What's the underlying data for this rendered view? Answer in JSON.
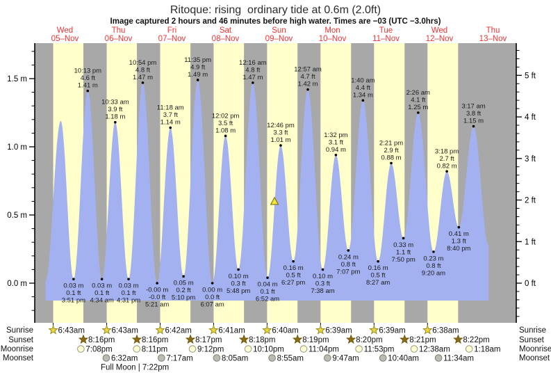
{
  "title": "Ritoque: rising  ordinary tide at 0.6m (2.0ft)",
  "subtitle": "Image captured 2 hours and 46 minutes before high water. Times are −03 (UTC −3.0hrs)",
  "labels": {
    "sunrise": "Sunrise",
    "sunset": "Sunset",
    "moonrise": "Moonrise",
    "moonset": "Moonset"
  },
  "chart_data": {
    "type": "area",
    "title": "Ritoque: rising  ordinary tide at 0.6m (2.0ft)",
    "y_axis_left": {
      "unit": "m",
      "major_ticks": [
        0.0,
        0.5,
        1.0,
        1.5
      ],
      "labels": [
        "0.0 m",
        "0.5 m",
        "1.0 m",
        "1.5 m"
      ],
      "minor_step": 0.1,
      "range": [
        -0.28,
        1.76
      ]
    },
    "y_axis_right": {
      "unit": "ft",
      "major_ticks": [
        0,
        1,
        2,
        3,
        4,
        5
      ],
      "labels": [
        "0 ft",
        "1 ft",
        "2 ft",
        "3 ft",
        "4 ft",
        "5 ft"
      ],
      "minor_step": 0.2
    },
    "days": [
      {
        "weekday": "Wed",
        "date": "05–Nov"
      },
      {
        "weekday": "Thu",
        "date": "06–Nov"
      },
      {
        "weekday": "Fri",
        "date": "07–Nov"
      },
      {
        "weekday": "Sat",
        "date": "08–Nov"
      },
      {
        "weekday": "Sun",
        "date": "09–Nov"
      },
      {
        "weekday": "Mon",
        "date": "10–Nov"
      },
      {
        "weekday": "Tue",
        "date": "11–Nov"
      },
      {
        "weekday": "Wed",
        "date": "12–Nov"
      },
      {
        "weekday": "Thu",
        "date": "13–Nov"
      }
    ],
    "tide_events": [
      {
        "day": 0,
        "hour": 3.3,
        "height_m": 0.02,
        "type": "low",
        "labeled": false
      },
      {
        "day": 0,
        "hour": 10.1,
        "height_m": 1.19,
        "type": "high",
        "labeled": false
      },
      {
        "day": 0,
        "hour": 15.85,
        "height_m": 0.03,
        "type": "low",
        "labeled": true,
        "m": "0.03 m",
        "ft": "0.1 ft",
        "time": "3:51 pm"
      },
      {
        "day": 0,
        "hour": 22.22,
        "height_m": 1.41,
        "type": "high",
        "labeled": true,
        "m": "1.41 m",
        "ft": "4.6 ft",
        "time": "10:13 pm"
      },
      {
        "day": 1,
        "hour": 4.57,
        "height_m": 0.03,
        "type": "low",
        "labeled": true,
        "m": "0.03 m",
        "ft": "0.1 ft",
        "time": "4:34 am"
      },
      {
        "day": 1,
        "hour": 10.55,
        "height_m": 1.18,
        "type": "high",
        "labeled": true,
        "m": "1.18 m",
        "ft": "3.9 ft",
        "time": "10:33 am"
      },
      {
        "day": 1,
        "hour": 16.52,
        "height_m": 0.03,
        "type": "low",
        "labeled": true,
        "m": "0.03 m",
        "ft": "0.1 ft",
        "time": "4:31 pm"
      },
      {
        "day": 1,
        "hour": 22.9,
        "height_m": 1.47,
        "type": "high",
        "labeled": true,
        "m": "1.47 m",
        "ft": "4.8 ft",
        "time": "10:54 pm"
      },
      {
        "day": 2,
        "hour": 5.35,
        "height_m": 0.0,
        "type": "low",
        "labeled": true,
        "m": "-0.00 m",
        "ft": "-0.0 ft",
        "time": "5:21 am"
      },
      {
        "day": 2,
        "hour": 11.3,
        "height_m": 1.14,
        "type": "high",
        "labeled": true,
        "m": "1.14 m",
        "ft": "3.7 ft",
        "time": "11:18 am"
      },
      {
        "day": 2,
        "hour": 17.17,
        "height_m": 0.05,
        "type": "low",
        "labeled": true,
        "m": "0.05 m",
        "ft": "0.2 ft",
        "time": "5:10 pm"
      },
      {
        "day": 2,
        "hour": 23.58,
        "height_m": 1.49,
        "type": "high",
        "labeled": true,
        "m": "1.49 m",
        "ft": "4.9 ft",
        "time": "11:35 pm"
      },
      {
        "day": 3,
        "hour": 6.12,
        "height_m": 0.0,
        "type": "low",
        "labeled": true,
        "m": "0.00 m",
        "ft": "0.0 ft",
        "time": "6:07 am"
      },
      {
        "day": 3,
        "hour": 12.03,
        "height_m": 1.08,
        "type": "high",
        "labeled": true,
        "m": "1.08 m",
        "ft": "3.5 ft",
        "time": "12:02 pm"
      },
      {
        "day": 3,
        "hour": 17.8,
        "height_m": 0.1,
        "type": "low",
        "labeled": true,
        "m": "0.10 m",
        "ft": "0.3 ft",
        "time": "5:48 pm"
      },
      {
        "day": 4,
        "hour": 0.27,
        "height_m": 1.47,
        "type": "high",
        "labeled": true,
        "m": "1.47 m",
        "ft": "4.8 ft",
        "time": "12:16 am"
      },
      {
        "day": 4,
        "hour": 6.87,
        "height_m": 0.04,
        "type": "low",
        "labeled": true,
        "m": "0.04 m",
        "ft": "0.1 ft",
        "time": "6:52 am"
      },
      {
        "day": 4,
        "hour": 12.77,
        "height_m": 1.01,
        "type": "high",
        "labeled": true,
        "m": "1.01 m",
        "ft": "3.3 ft",
        "time": "12:46 pm"
      },
      {
        "day": 4,
        "hour": 18.45,
        "height_m": 0.16,
        "type": "low",
        "labeled": true,
        "m": "0.16 m",
        "ft": "0.5 ft",
        "time": "6:27 pm"
      },
      {
        "day": 5,
        "hour": 0.95,
        "height_m": 1.42,
        "type": "high",
        "labeled": true,
        "m": "1.42 m",
        "ft": "4.7 ft",
        "time": "12:57 am"
      },
      {
        "day": 5,
        "hour": 7.63,
        "height_m": 0.1,
        "type": "low",
        "labeled": true,
        "m": "0.10 m",
        "ft": "0.3 ft",
        "time": "7:38 am"
      },
      {
        "day": 5,
        "hour": 13.53,
        "height_m": 0.94,
        "type": "high",
        "labeled": true,
        "m": "0.94 m",
        "ft": "3.1 ft",
        "time": "1:32 pm"
      },
      {
        "day": 5,
        "hour": 19.12,
        "height_m": 0.24,
        "type": "low",
        "labeled": true,
        "m": "0.24 m",
        "ft": "0.8 ft",
        "time": "7:07 pm"
      },
      {
        "day": 6,
        "hour": 1.67,
        "height_m": 1.34,
        "type": "high",
        "labeled": true,
        "m": "1.34 m",
        "ft": "4.4 ft",
        "time": "1:40 am"
      },
      {
        "day": 6,
        "hour": 8.45,
        "height_m": 0.16,
        "type": "low",
        "labeled": true,
        "m": "0.16 m",
        "ft": "0.5 ft",
        "time": "8:27 am"
      },
      {
        "day": 6,
        "hour": 14.35,
        "height_m": 0.88,
        "type": "high",
        "labeled": true,
        "m": "0.88 m",
        "ft": "2.9 ft",
        "time": "2:21 pm"
      },
      {
        "day": 6,
        "hour": 19.83,
        "height_m": 0.33,
        "type": "low",
        "labeled": true,
        "m": "0.33 m",
        "ft": "1.1 ft",
        "time": "7:50 pm"
      },
      {
        "day": 7,
        "hour": 2.43,
        "height_m": 1.25,
        "type": "high",
        "labeled": true,
        "m": "1.25 m",
        "ft": "4.1 ft",
        "time": "2:26 am"
      },
      {
        "day": 7,
        "hour": 9.33,
        "height_m": 0.23,
        "type": "low",
        "labeled": true,
        "m": "0.23 m",
        "ft": "0.8 ft",
        "time": "9:20 am"
      },
      {
        "day": 7,
        "hour": 15.3,
        "height_m": 0.82,
        "type": "high",
        "labeled": true,
        "m": "0.82 m",
        "ft": "2.7 ft",
        "time": "3:18 pm"
      },
      {
        "day": 7,
        "hour": 20.67,
        "height_m": 0.41,
        "type": "low",
        "labeled": true,
        "m": "0.41 m",
        "ft": "1.3 ft",
        "time": "8:40 pm"
      },
      {
        "day": 8,
        "hour": 3.28,
        "height_m": 1.15,
        "type": "high",
        "labeled": true,
        "m": "1.15 m",
        "ft": "3.8 ft",
        "time": "3:17 am"
      },
      {
        "day": 8,
        "hour": 10.0,
        "height_m": 0.28,
        "type": "low",
        "labeled": false
      }
    ],
    "current_marker": {
      "day": 4,
      "hour": 10.0,
      "value_m": 0.6
    },
    "sun_moon": {
      "sunrise": [
        {
          "day": 0,
          "hour": 6.72,
          "label": "6:43am"
        },
        {
          "day": 1,
          "hour": 6.72,
          "label": "6:43am"
        },
        {
          "day": 2,
          "hour": 6.7,
          "label": "6:42am"
        },
        {
          "day": 3,
          "hour": 6.68,
          "label": "6:41am"
        },
        {
          "day": 4,
          "hour": 6.67,
          "label": "6:40am"
        },
        {
          "day": 5,
          "hour": 6.65,
          "label": "6:39am"
        },
        {
          "day": 6,
          "hour": 6.65,
          "label": "6:39am"
        },
        {
          "day": 7,
          "hour": 6.63,
          "label": "6:38am"
        }
      ],
      "sunset": [
        {
          "day": 0,
          "hour": 20.27,
          "label": "8:16pm"
        },
        {
          "day": 1,
          "hour": 20.27,
          "label": "8:16pm"
        },
        {
          "day": 2,
          "hour": 20.28,
          "label": "8:17pm"
        },
        {
          "day": 3,
          "hour": 20.3,
          "label": "8:18pm"
        },
        {
          "day": 4,
          "hour": 20.32,
          "label": "8:19pm"
        },
        {
          "day": 5,
          "hour": 20.33,
          "label": "8:20pm"
        },
        {
          "day": 6,
          "hour": 20.35,
          "label": "8:21pm"
        },
        {
          "day": 7,
          "hour": 20.37,
          "label": "8:22pm"
        }
      ],
      "moonrise": [
        {
          "day": 0,
          "hour": 19.13,
          "label": "7:08pm"
        },
        {
          "day": 1,
          "hour": 20.18,
          "label": "8:11pm"
        },
        {
          "day": 2,
          "hour": 21.2,
          "label": "9:12pm"
        },
        {
          "day": 3,
          "hour": 22.17,
          "label": "10:10pm"
        },
        {
          "day": 4,
          "hour": 23.07,
          "label": "11:04pm"
        },
        {
          "day": 5,
          "hour": 23.88,
          "label": "11:53pm"
        },
        {
          "day": 7,
          "hour": 0.63,
          "label": "12:38am"
        },
        {
          "day": 8,
          "hour": 1.3,
          "label": "1:18am"
        }
      ],
      "moonset": [
        {
          "day": 1,
          "hour": 6.53,
          "label": "6:32am"
        },
        {
          "day": 2,
          "hour": 7.28,
          "label": "7:17am"
        },
        {
          "day": 3,
          "hour": 8.08,
          "label": "8:05am"
        },
        {
          "day": 4,
          "hour": 8.92,
          "label": "8:55am"
        },
        {
          "day": 5,
          "hour": 9.78,
          "label": "9:47am"
        },
        {
          "day": 6,
          "hour": 10.67,
          "label": "10:40am"
        },
        {
          "day": 7,
          "hour": 11.57,
          "label": "11:34am"
        }
      ],
      "full_moon": {
        "day": 1,
        "hour": 19.37,
        "label": "Full Moon | 7:22pm"
      }
    },
    "colors": {
      "day_band": "#ffffcc",
      "night_band": "#a8a8a8",
      "tide_fill": "#a3b1f1",
      "day_label": "#f03333",
      "marker_fill": "#f4e63e",
      "marker_stroke": "#8a7a10",
      "sunrise_star_fill": "#ebd93f",
      "sunrise_star_stroke": "#9a8a20",
      "sunset_star_fill": "#8a6d1a",
      "sunset_star_stroke": "#6e5706",
      "moonrise_fill": "#ffffd8",
      "moonrise_stroke": "#9a9a7a",
      "moonset_fill": "#bcbbb0",
      "moonset_stroke": "#7f7f77",
      "axis": "#000000",
      "annotation_text": "#1a1a1a"
    }
  }
}
